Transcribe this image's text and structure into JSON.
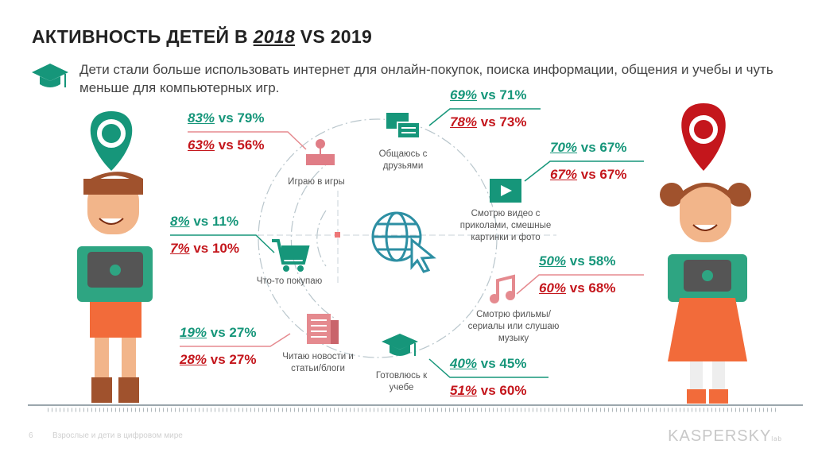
{
  "title": {
    "prefix": "АКТИВНОСТЬ ДЕТЕЙ В ",
    "year1": "2018",
    "mid": " VS ",
    "year2": "2019"
  },
  "subtitle": "Дети стали больше использовать интернет для онлайн-покупок, поиска информации, общения и учебы и чуть меньше для компьютерных игр.",
  "colors": {
    "boys": "#16967a",
    "girls": "#c4161c"
  },
  "activities": [
    {
      "label": "Играю в игры",
      "icon": "joystick-icon",
      "boys": {
        "y2018": "83%",
        "y2019": "79%"
      },
      "girls": {
        "y2018": "63%",
        "y2019": "56%"
      }
    },
    {
      "label": "Что-то покупаю",
      "icon": "cart-icon",
      "boys": {
        "y2018": "8%",
        "y2019": "11%"
      },
      "girls": {
        "y2018": "7%",
        "y2019": "10%"
      }
    },
    {
      "label": "Читаю новости и статьи/блоги",
      "icon": "newspaper-icon",
      "boys": {
        "y2018": "19%",
        "y2019": "27%"
      },
      "girls": {
        "y2018": "28%",
        "y2019": "27%"
      }
    },
    {
      "label": "Общаюсь с друзьями",
      "icon": "chat-icon",
      "boys": {
        "y2018": "69%",
        "y2019": "71%"
      },
      "girls": {
        "y2018": "78%",
        "y2019": "73%"
      }
    },
    {
      "label": "Смотрю видео с приколами, смешные картинки и фото",
      "icon": "video-icon",
      "boys": {
        "y2018": "70%",
        "y2019": "67%"
      },
      "girls": {
        "y2018": "67%",
        "y2019": "67%"
      }
    },
    {
      "label": "Смотрю фильмы/сериалы или слушаю музыку",
      "icon": "music-icon",
      "boys": {
        "y2018": "50%",
        "y2019": "58%"
      },
      "girls": {
        "y2018": "60%",
        "y2019": "68%"
      }
    },
    {
      "label": "Готовлюсь к учебе",
      "icon": "graduation-cap-icon",
      "boys": {
        "y2018": "40%",
        "y2019": "45%"
      },
      "girls": {
        "y2018": "51%",
        "y2019": "60%"
      }
    }
  ],
  "vs": "vs",
  "footer": {
    "page": "6",
    "text": "Взрослые и дети в цифровом мире",
    "logo": "KASPERSKY lab"
  }
}
